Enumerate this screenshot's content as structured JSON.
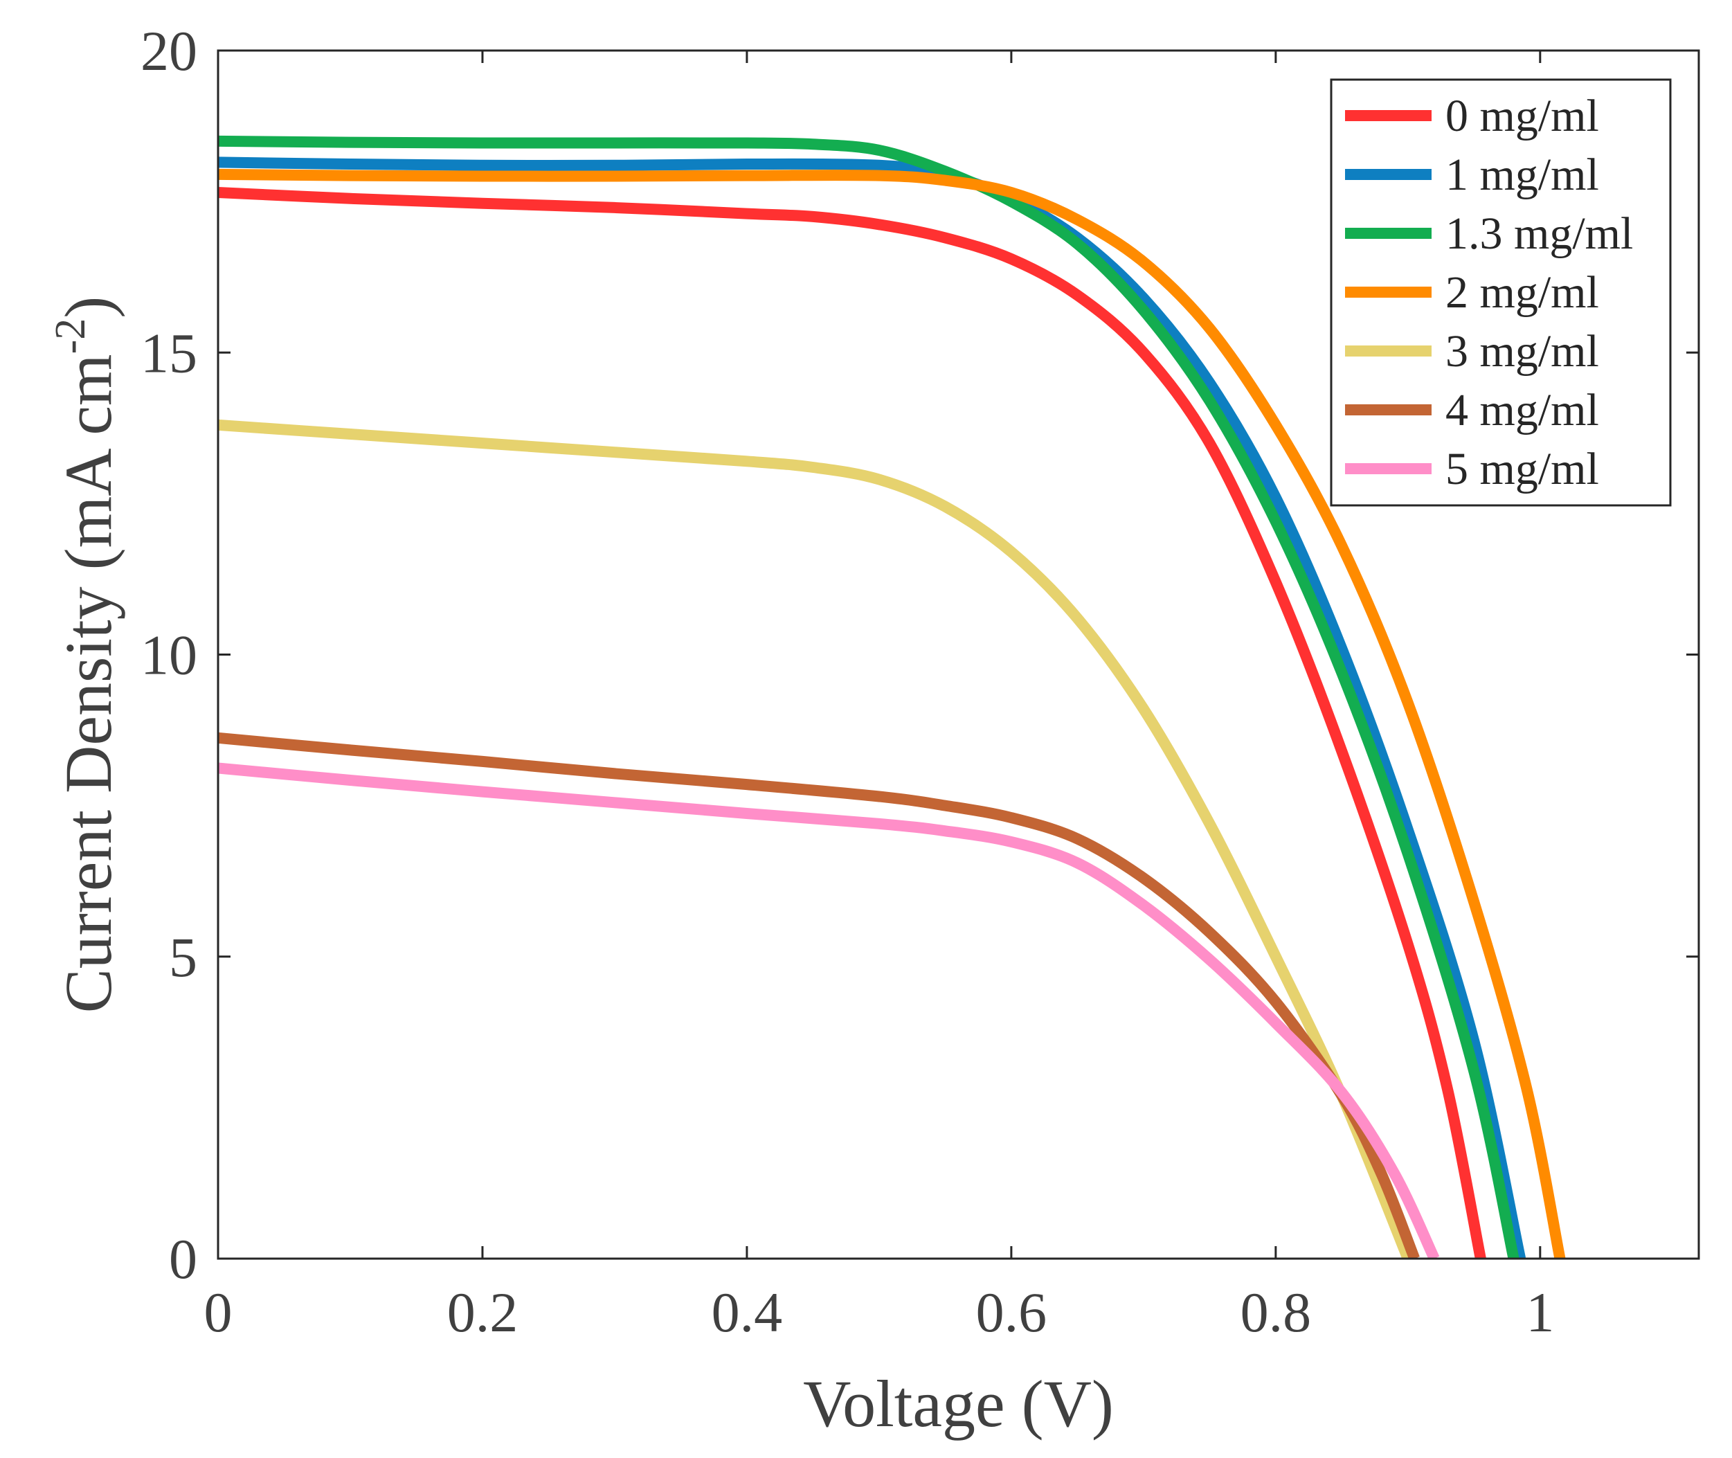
{
  "chart_data": {
    "type": "line",
    "title": "",
    "xlabel": "Voltage (V)",
    "ylabel": "Current Density (mA cm",
    "ylabel_superscript": "-2",
    "ylabel_close": ")",
    "xlim": [
      0,
      1.12
    ],
    "ylim": [
      0,
      20
    ],
    "x_ticks": [
      0,
      0.2,
      0.4,
      0.6,
      0.8,
      1
    ],
    "x_tick_labels": [
      "0",
      "0.2",
      "0.4",
      "0.6",
      "0.8",
      "1"
    ],
    "y_ticks": [
      0,
      5,
      10,
      15,
      20
    ],
    "y_tick_labels": [
      "0",
      "5",
      "10",
      "15",
      "20"
    ],
    "grid": false,
    "legend_position": "top-right",
    "series": [
      {
        "name": "0 mg/ml",
        "color": "#FF3131",
        "points": [
          [
            0,
            17.65
          ],
          [
            0.1,
            17.55
          ],
          [
            0.2,
            17.47
          ],
          [
            0.3,
            17.4
          ],
          [
            0.4,
            17.3
          ],
          [
            0.45,
            17.25
          ],
          [
            0.5,
            17.12
          ],
          [
            0.55,
            16.9
          ],
          [
            0.6,
            16.55
          ],
          [
            0.65,
            15.95
          ],
          [
            0.7,
            15.0
          ],
          [
            0.75,
            13.5
          ],
          [
            0.8,
            11.2
          ],
          [
            0.85,
            8.4
          ],
          [
            0.9,
            5.2
          ],
          [
            0.93,
            2.8
          ],
          [
            0.955,
            0.0
          ]
        ]
      },
      {
        "name": "1 mg/ml",
        "color": "#0E7FC1",
        "points": [
          [
            0,
            18.15
          ],
          [
            0.1,
            18.12
          ],
          [
            0.2,
            18.1
          ],
          [
            0.3,
            18.1
          ],
          [
            0.4,
            18.12
          ],
          [
            0.5,
            18.1
          ],
          [
            0.55,
            17.95
          ],
          [
            0.6,
            17.55
          ],
          [
            0.65,
            16.9
          ],
          [
            0.7,
            15.9
          ],
          [
            0.75,
            14.5
          ],
          [
            0.8,
            12.6
          ],
          [
            0.85,
            10.1
          ],
          [
            0.9,
            7.1
          ],
          [
            0.95,
            3.6
          ],
          [
            0.985,
            0.0
          ]
        ]
      },
      {
        "name": "1.3 mg/ml",
        "color": "#13AD50",
        "points": [
          [
            0,
            18.5
          ],
          [
            0.1,
            18.48
          ],
          [
            0.2,
            18.47
          ],
          [
            0.3,
            18.47
          ],
          [
            0.4,
            18.47
          ],
          [
            0.45,
            18.45
          ],
          [
            0.5,
            18.35
          ],
          [
            0.55,
            18.0
          ],
          [
            0.6,
            17.5
          ],
          [
            0.65,
            16.8
          ],
          [
            0.7,
            15.7
          ],
          [
            0.75,
            14.2
          ],
          [
            0.8,
            12.2
          ],
          [
            0.85,
            9.7
          ],
          [
            0.9,
            6.7
          ],
          [
            0.95,
            3.1
          ],
          [
            0.98,
            0.0
          ]
        ]
      },
      {
        "name": "2 mg/ml",
        "color": "#FF8B00",
        "points": [
          [
            0,
            17.95
          ],
          [
            0.1,
            17.93
          ],
          [
            0.2,
            17.92
          ],
          [
            0.3,
            17.92
          ],
          [
            0.4,
            17.93
          ],
          [
            0.5,
            17.93
          ],
          [
            0.55,
            17.85
          ],
          [
            0.6,
            17.65
          ],
          [
            0.65,
            17.2
          ],
          [
            0.7,
            16.5
          ],
          [
            0.75,
            15.4
          ],
          [
            0.8,
            13.8
          ],
          [
            0.85,
            11.8
          ],
          [
            0.9,
            9.2
          ],
          [
            0.95,
            5.9
          ],
          [
            0.99,
            2.8
          ],
          [
            1.015,
            0.0
          ]
        ]
      },
      {
        "name": "3 mg/ml",
        "color": "#E6D26E",
        "points": [
          [
            0,
            13.8
          ],
          [
            0.1,
            13.65
          ],
          [
            0.2,
            13.5
          ],
          [
            0.3,
            13.35
          ],
          [
            0.4,
            13.2
          ],
          [
            0.45,
            13.1
          ],
          [
            0.5,
            12.9
          ],
          [
            0.55,
            12.45
          ],
          [
            0.6,
            11.7
          ],
          [
            0.65,
            10.6
          ],
          [
            0.7,
            9.1
          ],
          [
            0.75,
            7.2
          ],
          [
            0.8,
            5.0
          ],
          [
            0.85,
            2.7
          ],
          [
            0.9,
            0.0
          ]
        ]
      },
      {
        "name": "4 mg/ml",
        "color": "#C36534",
        "points": [
          [
            0,
            8.62
          ],
          [
            0.1,
            8.42
          ],
          [
            0.2,
            8.23
          ],
          [
            0.3,
            8.03
          ],
          [
            0.4,
            7.85
          ],
          [
            0.5,
            7.65
          ],
          [
            0.55,
            7.5
          ],
          [
            0.6,
            7.3
          ],
          [
            0.65,
            6.95
          ],
          [
            0.7,
            6.3
          ],
          [
            0.75,
            5.4
          ],
          [
            0.8,
            4.25
          ],
          [
            0.85,
            2.7
          ],
          [
            0.88,
            1.4
          ],
          [
            0.905,
            0.0
          ]
        ]
      },
      {
        "name": "5 mg/ml",
        "color": "#FF8EC8",
        "points": [
          [
            0,
            8.12
          ],
          [
            0.1,
            7.92
          ],
          [
            0.2,
            7.73
          ],
          [
            0.3,
            7.55
          ],
          [
            0.4,
            7.37
          ],
          [
            0.5,
            7.2
          ],
          [
            0.55,
            7.08
          ],
          [
            0.6,
            6.9
          ],
          [
            0.65,
            6.55
          ],
          [
            0.7,
            5.85
          ],
          [
            0.75,
            4.95
          ],
          [
            0.8,
            3.9
          ],
          [
            0.85,
            2.75
          ],
          [
            0.89,
            1.4
          ],
          [
            0.92,
            0.0
          ]
        ]
      }
    ]
  }
}
